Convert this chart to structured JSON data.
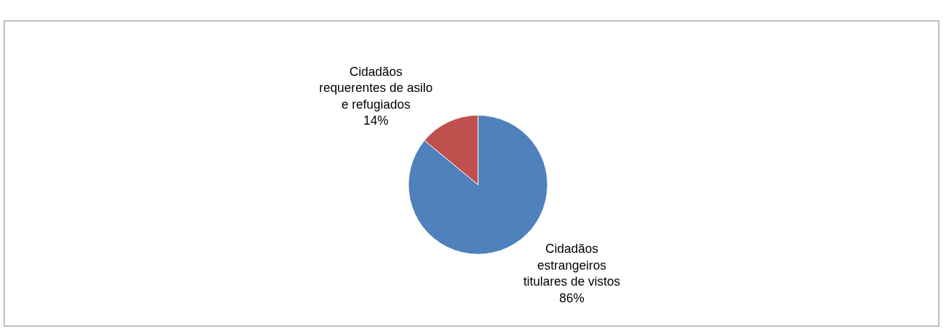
{
  "chart_data": {
    "type": "pie",
    "categories": [
      "Cidadãos\nestrangeiros\ntitulares de vistos",
      "Cidadãos\nrequerentes de asilo\ne refugiados"
    ],
    "values": [
      86,
      14
    ],
    "value_labels": [
      "86%",
      "14%"
    ],
    "colors": [
      "#4f81bd",
      "#c0504d"
    ],
    "legend": false
  }
}
